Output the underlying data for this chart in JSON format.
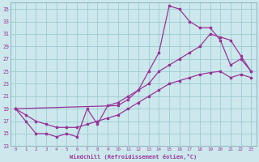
{
  "xlabel": "Windchill (Refroidissement éolien,°C)",
  "bg_color": "#cce8ec",
  "grid_color": "#99ccd4",
  "line_color": "#993399",
  "xlim": [
    -0.5,
    23.5
  ],
  "ylim": [
    13,
    36
  ],
  "xticks": [
    0,
    1,
    2,
    3,
    4,
    5,
    6,
    7,
    8,
    9,
    10,
    11,
    12,
    13,
    14,
    15,
    16,
    17,
    18,
    19,
    20,
    21,
    22,
    23
  ],
  "yticks": [
    13,
    15,
    17,
    19,
    21,
    23,
    25,
    27,
    29,
    31,
    33,
    35
  ],
  "curve_main_x": [
    0,
    1,
    2,
    3,
    4,
    5,
    6,
    7,
    8,
    9,
    10,
    11,
    12,
    13,
    14,
    15,
    16,
    17,
    18,
    19,
    20,
    21,
    22,
    23
  ],
  "curve_main_y": [
    19,
    17,
    15,
    15,
    14.5,
    15,
    14.5,
    19,
    16.5,
    19.5,
    20,
    21,
    22,
    25,
    28,
    35.5,
    35,
    33,
    32,
    32,
    30,
    26,
    27,
    25
  ],
  "curve_upper_x": [
    0,
    10,
    11,
    12,
    13,
    14,
    15,
    16,
    17,
    18,
    19,
    20,
    21,
    22,
    23
  ],
  "curve_upper_y": [
    19,
    19.5,
    20.5,
    22,
    23,
    25,
    26,
    27,
    28,
    29,
    31,
    30.5,
    30,
    27.5,
    25
  ],
  "curve_lower_x": [
    0,
    1,
    2,
    3,
    4,
    5,
    6,
    7,
    8,
    9,
    10,
    11,
    12,
    13,
    14,
    15,
    16,
    17,
    18,
    19,
    20,
    21,
    22,
    23
  ],
  "curve_lower_y": [
    19,
    18,
    17,
    16.5,
    16,
    16,
    16,
    16.5,
    17,
    17.5,
    18,
    19,
    20,
    21,
    22,
    23,
    23.5,
    24,
    24.5,
    24.8,
    25,
    24,
    24.5,
    24
  ]
}
